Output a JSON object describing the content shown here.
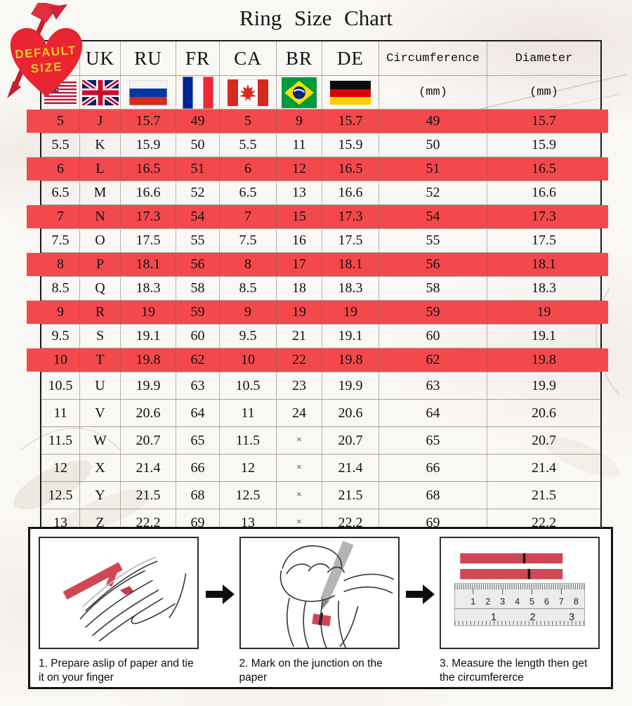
{
  "title": "Ring Size Chart",
  "badge": {
    "line1": "DEFAULT",
    "line2": "SIZE"
  },
  "table": {
    "columns": [
      "US",
      "UK",
      "RU",
      "FR",
      "CA",
      "BR",
      "DE",
      "Circumference",
      "Diameter"
    ],
    "unit_label": "(mm)",
    "flag_icons": [
      "us-flag",
      "uk-flag",
      "ru-flag",
      "fr-flag",
      "ca-flag",
      "br-flag",
      "de-flag"
    ],
    "rows": [
      {
        "cells": [
          "5",
          "J",
          "15.7",
          "49",
          "5",
          "9",
          "15.7",
          "49",
          "15.7"
        ],
        "highlight": true
      },
      {
        "cells": [
          "5.5",
          "K",
          "15.9",
          "50",
          "5.5",
          "11",
          "15.9",
          "50",
          "15.9"
        ],
        "highlight": false
      },
      {
        "cells": [
          "6",
          "L",
          "16.5",
          "51",
          "6",
          "12",
          "16.5",
          "51",
          "16.5"
        ],
        "highlight": true
      },
      {
        "cells": [
          "6.5",
          "M",
          "16.6",
          "52",
          "6.5",
          "13",
          "16.6",
          "52",
          "16.6"
        ],
        "highlight": false
      },
      {
        "cells": [
          "7",
          "N",
          "17.3",
          "54",
          "7",
          "15",
          "17.3",
          "54",
          "17.3"
        ],
        "highlight": true
      },
      {
        "cells": [
          "7.5",
          "O",
          "17.5",
          "55",
          "7.5",
          "16",
          "17.5",
          "55",
          "17.5"
        ],
        "highlight": false
      },
      {
        "cells": [
          "8",
          "P",
          "18.1",
          "56",
          "8",
          "17",
          "18.1",
          "56",
          "18.1"
        ],
        "highlight": true
      },
      {
        "cells": [
          "8.5",
          "Q",
          "18.3",
          "58",
          "8.5",
          "18",
          "18.3",
          "58",
          "18.3"
        ],
        "highlight": false
      },
      {
        "cells": [
          "9",
          "R",
          "19",
          "59",
          "9",
          "19",
          "19",
          "59",
          "19"
        ],
        "highlight": true
      },
      {
        "cells": [
          "9.5",
          "S",
          "19.1",
          "60",
          "9.5",
          "21",
          "19.1",
          "60",
          "19.1"
        ],
        "highlight": false
      },
      {
        "cells": [
          "10",
          "T",
          "19.8",
          "62",
          "10",
          "22",
          "19.8",
          "62",
          "19.8"
        ],
        "highlight": true
      },
      {
        "cells": [
          "10.5",
          "U",
          "19.9",
          "63",
          "10.5",
          "23",
          "19.9",
          "63",
          "19.9"
        ],
        "highlight": false
      },
      {
        "cells": [
          "11",
          "V",
          "20.6",
          "64",
          "11",
          "24",
          "20.6",
          "64",
          "20.6"
        ],
        "highlight": false
      },
      {
        "cells": [
          "11.5",
          "W",
          "20.7",
          "65",
          "11.5",
          "×",
          "20.7",
          "65",
          "20.7"
        ],
        "highlight": false
      },
      {
        "cells": [
          "12",
          "X",
          "21.4",
          "66",
          "12",
          "×",
          "21.4",
          "66",
          "21.4"
        ],
        "highlight": false
      },
      {
        "cells": [
          "12.5",
          "Y",
          "21.5",
          "68",
          "12.5",
          "×",
          "21.5",
          "68",
          "21.5"
        ],
        "highlight": false
      },
      {
        "cells": [
          "13",
          "Z",
          "22.2",
          "69",
          "13",
          "×",
          "22.2",
          "69",
          "22.2"
        ],
        "highlight": false
      }
    ]
  },
  "instructions": {
    "steps": [
      {
        "caption": "1. Prepare aslip of paper and tie it on your finger"
      },
      {
        "caption": "2. Mark on the junction on the paper"
      },
      {
        "caption": "3. Measure the length then get the circumfererce"
      }
    ],
    "ruler": {
      "cm_numbers": [
        "1",
        "2",
        "3",
        "4",
        "5",
        "6",
        "7",
        "8"
      ],
      "inch_numbers": [
        "1",
        "2",
        "3"
      ]
    }
  },
  "colors": {
    "highlight_red": "#f3494c",
    "strip_red": "#cf4756",
    "heart_red": "#ea2430",
    "badge_text_yellow": "#f6c82e"
  },
  "chart_data": {
    "type": "table",
    "title": "Ring Size Chart",
    "columns": [
      "US",
      "UK",
      "RU",
      "FR",
      "CA",
      "BR",
      "DE",
      "Circumference (mm)",
      "Diameter (mm)"
    ],
    "rows": [
      [
        "5",
        "J",
        "15.7",
        "49",
        "5",
        "9",
        "15.7",
        "49",
        "15.7"
      ],
      [
        "5.5",
        "K",
        "15.9",
        "50",
        "5.5",
        "11",
        "15.9",
        "50",
        "15.9"
      ],
      [
        "6",
        "L",
        "16.5",
        "51",
        "6",
        "12",
        "16.5",
        "51",
        "16.5"
      ],
      [
        "6.5",
        "M",
        "16.6",
        "52",
        "6.5",
        "13",
        "16.6",
        "52",
        "16.6"
      ],
      [
        "7",
        "N",
        "17.3",
        "54",
        "7",
        "15",
        "17.3",
        "54",
        "17.3"
      ],
      [
        "7.5",
        "O",
        "17.5",
        "55",
        "7.5",
        "16",
        "17.5",
        "55",
        "17.5"
      ],
      [
        "8",
        "P",
        "18.1",
        "56",
        "8",
        "17",
        "18.1",
        "56",
        "18.1"
      ],
      [
        "8.5",
        "Q",
        "18.3",
        "58",
        "8.5",
        "18",
        "18.3",
        "58",
        "18.3"
      ],
      [
        "9",
        "R",
        "19",
        "59",
        "9",
        "19",
        "19",
        "59",
        "19"
      ],
      [
        "9.5",
        "S",
        "19.1",
        "60",
        "9.5",
        "21",
        "19.1",
        "60",
        "19.1"
      ],
      [
        "10",
        "T",
        "19.8",
        "62",
        "10",
        "22",
        "19.8",
        "62",
        "19.8"
      ],
      [
        "10.5",
        "U",
        "19.9",
        "63",
        "10.5",
        "23",
        "19.9",
        "63",
        "19.9"
      ],
      [
        "11",
        "V",
        "20.6",
        "64",
        "11",
        "24",
        "20.6",
        "64",
        "20.6"
      ],
      [
        "11.5",
        "W",
        "20.7",
        "65",
        "11.5",
        "×",
        "20.7",
        "65",
        "20.7"
      ],
      [
        "12",
        "X",
        "21.4",
        "66",
        "12",
        "×",
        "21.4",
        "66",
        "21.4"
      ],
      [
        "12.5",
        "Y",
        "21.5",
        "68",
        "12.5",
        "×",
        "21.5",
        "68",
        "21.5"
      ],
      [
        "13",
        "Z",
        "22.2",
        "69",
        "13",
        "×",
        "22.2",
        "69",
        "22.2"
      ]
    ],
    "highlighted_rows_us_sizes": [
      "5",
      "6",
      "7",
      "8",
      "9",
      "10"
    ]
  }
}
